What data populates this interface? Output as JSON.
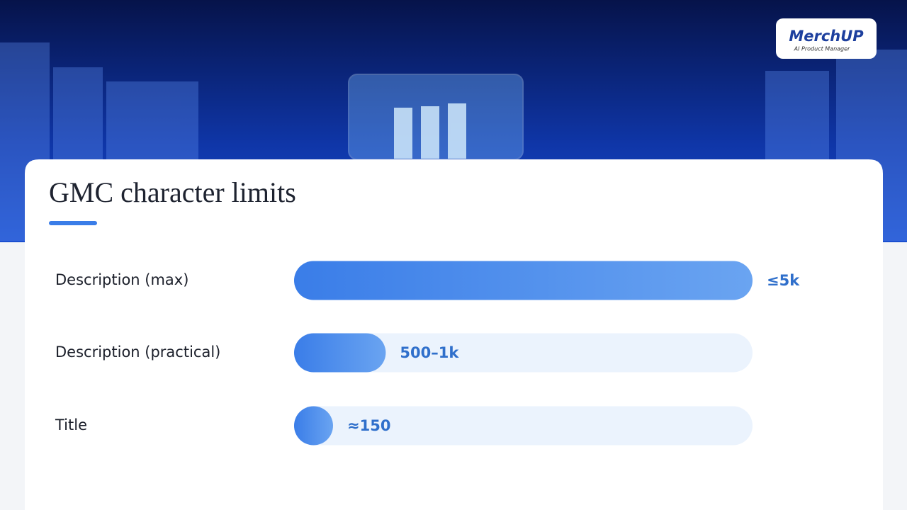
{
  "logo": {
    "name": "MerchUP",
    "tagline": "AI Product Manager"
  },
  "chart_data": {
    "type": "bar",
    "orientation": "horizontal",
    "title": "GMC character limits",
    "categories": [
      "Description (max)",
      "Description (practical)",
      "Title"
    ],
    "values": [
      5000,
      1000,
      150
    ],
    "value_labels": [
      "≤5k",
      "500–1k",
      "≈150"
    ],
    "color": "#3b7fe8",
    "xlim": [
      0,
      5000
    ]
  }
}
